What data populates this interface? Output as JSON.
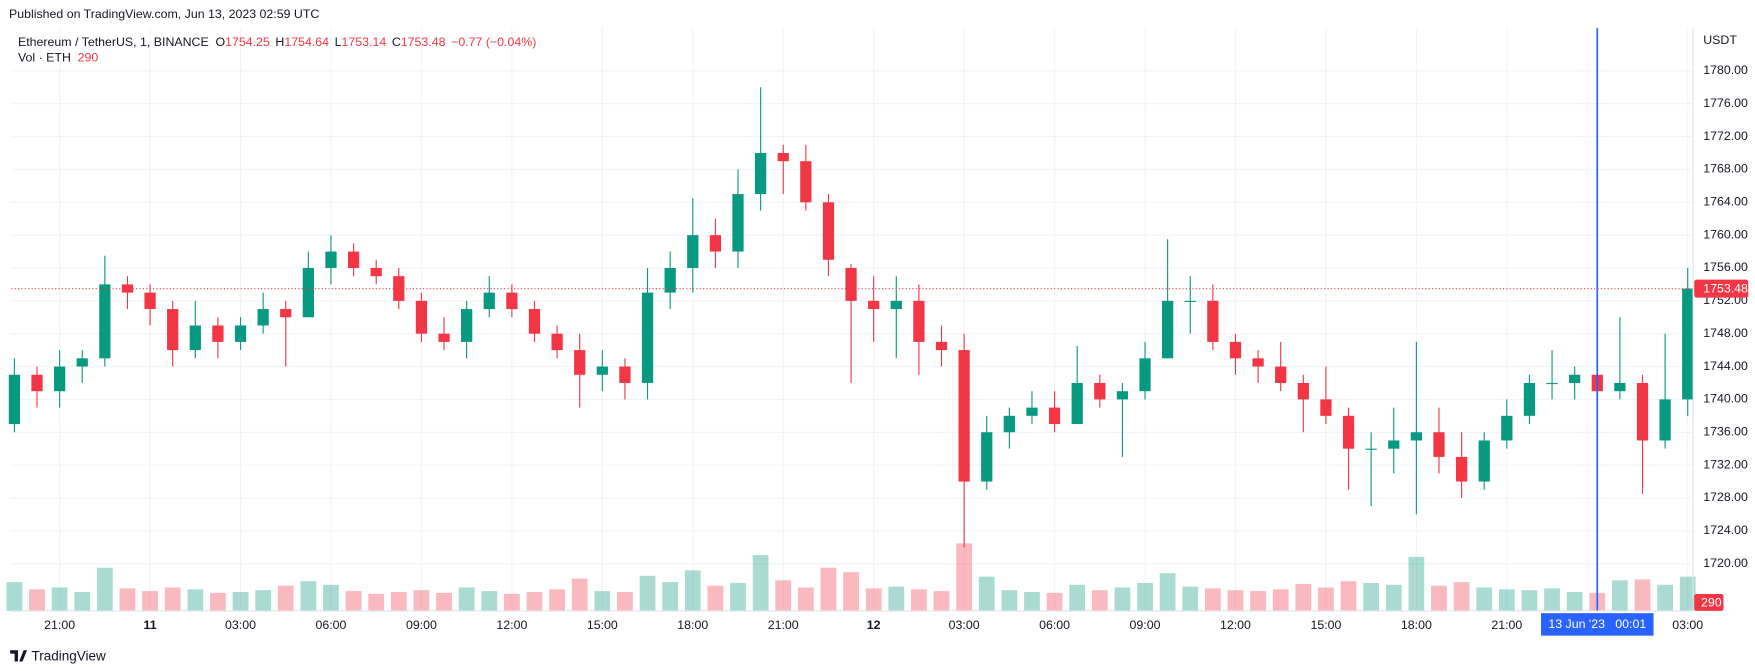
{
  "header": {
    "published": "Published on TradingView.com, Jun 13, 2023 02:59 UTC",
    "brand": "TradingView"
  },
  "chart_data": {
    "type": "candlestick",
    "symbol": "Ethereum / TetherUS, 1, BINANCE",
    "ohlc_legend": [
      {
        "key": "O",
        "value": "1754.25"
      },
      {
        "key": "H",
        "value": "1754.64"
      },
      {
        "key": "L",
        "value": "1753.14"
      },
      {
        "key": "C",
        "value": "1753.48"
      }
    ],
    "change": "−0.77 (−0.04%)",
    "volume_legend": "Vol · ETH",
    "volume_last": "290",
    "y_unit": "USDT",
    "up_color": "#089981",
    "down_color": "#f23645",
    "grid": true,
    "categories": [
      null,
      null,
      "21:00",
      null,
      null,
      null,
      "11",
      null,
      null,
      null,
      "03:00",
      null,
      null,
      null,
      "06:00",
      null,
      null,
      null,
      "09:00",
      null,
      null,
      null,
      "12:00",
      null,
      null,
      null,
      "15:00",
      null,
      null,
      null,
      "18:00",
      null,
      null,
      null,
      "21:00",
      null,
      null,
      null,
      "12",
      null,
      null,
      null,
      "03:00",
      null,
      null,
      null,
      "06:00",
      null,
      null,
      null,
      "09:00",
      null,
      null,
      null,
      "12:00",
      null,
      null,
      null,
      "15:00",
      null,
      null,
      null,
      "18:00",
      null,
      null,
      null,
      "21:00",
      null,
      null,
      null,
      {
        "label": "13 Jun '23   00:01",
        "crosshair": true
      },
      null,
      null,
      null,
      "03:00"
    ],
    "open": [
      1737,
      1743,
      1741,
      1744,
      1745,
      1754,
      1753,
      1751,
      1746,
      1749,
      1747,
      1749,
      1751,
      1750,
      1756,
      1758,
      1756,
      1755,
      1752,
      1748,
      1747,
      1751,
      1753,
      1751,
      1748,
      1746,
      1743,
      1744,
      1742,
      1753,
      1756,
      1760,
      1758,
      1765,
      1770,
      1769,
      1764,
      1756,
      1752,
      1751,
      1752,
      1747,
      1746,
      1730,
      1736,
      1738,
      1739,
      1737,
      1742,
      1740,
      1741,
      1745,
      1752,
      1752,
      1747,
      1745,
      1744,
      1742,
      1740,
      1738,
      1734,
      1734,
      1735,
      1736,
      1733,
      1730,
      1735,
      1738,
      1742,
      1742,
      1743,
      1741,
      1742,
      1735,
      1740
    ],
    "high": [
      1745,
      1744,
      1746,
      1746,
      1757.5,
      1755,
      1754,
      1752,
      1752,
      1750,
      1750,
      1753,
      1752,
      1758,
      1760,
      1759,
      1757,
      1756,
      1753,
      1750,
      1752,
      1755,
      1754,
      1752,
      1749,
      1748,
      1746,
      1745,
      1756,
      1758,
      1764.5,
      1762,
      1768,
      1778,
      1771,
      1771,
      1765,
      1756.5,
      1755,
      1755,
      1754,
      1749,
      1748,
      1738,
      1739,
      1741,
      1741,
      1746.5,
      1743,
      1742,
      1747,
      1759.5,
      1755,
      1754,
      1748,
      1746,
      1747,
      1743,
      1744,
      1739,
      1736,
      1739,
      1747,
      1739,
      1736,
      1736,
      1740,
      1743,
      1746,
      1744,
      1745,
      1750,
      1743,
      1748,
      1756
    ],
    "low": [
      1736,
      1739,
      1739,
      1742,
      1744,
      1751,
      1749,
      1744,
      1745,
      1745,
      1746,
      1748,
      1744,
      1750,
      1754,
      1755,
      1754,
      1751,
      1747,
      1746,
      1745,
      1750,
      1750,
      1747,
      1745,
      1739,
      1741,
      1740,
      1740,
      1751,
      1753,
      1756,
      1756,
      1763,
      1765,
      1763,
      1755,
      1742,
      1747,
      1745,
      1743,
      1744,
      1722,
      1729,
      1734,
      1737,
      1736,
      1737,
      1739,
      1733,
      1740,
      1745,
      1748,
      1746,
      1743,
      1742,
      1741,
      1736,
      1737,
      1729,
      1727,
      1731,
      1726,
      1731,
      1728,
      1729,
      1734,
      1737,
      1740,
      1740,
      1740,
      1740,
      1728.5,
      1734,
      1738
    ],
    "close": [
      1743,
      1741,
      1744,
      1745,
      1754,
      1753,
      1751,
      1746,
      1749,
      1747,
      1749,
      1751,
      1750,
      1756,
      1758,
      1756,
      1755,
      1752,
      1748,
      1747,
      1751,
      1753,
      1751,
      1748,
      1746,
      1743,
      1744,
      1742,
      1753,
      1756,
      1760,
      1758,
      1765,
      1770,
      1769,
      1764,
      1757,
      1752,
      1751,
      1752,
      1747,
      1746,
      1730,
      1736,
      1738,
      1739,
      1737,
      1742,
      1740,
      1741,
      1745,
      1752,
      1752,
      1747,
      1745,
      1744,
      1742,
      1740,
      1738,
      1734,
      1734,
      1735,
      1736,
      1733,
      1730,
      1735,
      1738,
      1742,
      1742,
      1743,
      1741,
      1742,
      1735,
      1740,
      1753.48
    ],
    "volume": [
      3200,
      2400,
      2600,
      2100,
      4800,
      2500,
      2200,
      2600,
      2400,
      2000,
      2100,
      2300,
      2800,
      3300,
      2900,
      2200,
      1900,
      2100,
      2300,
      2000,
      2600,
      2200,
      1900,
      2100,
      2400,
      3600,
      2200,
      2100,
      3900,
      3200,
      4500,
      2800,
      3100,
      6200,
      3400,
      2600,
      4800,
      4300,
      2500,
      2700,
      2400,
      2200,
      7500,
      3800,
      2300,
      2100,
      2000,
      2900,
      2300,
      2600,
      3100,
      4200,
      2700,
      2500,
      2300,
      2200,
      2400,
      3000,
      2600,
      3300,
      3100,
      2900,
      6000,
      2800,
      3200,
      2600,
      2400,
      2300,
      2500,
      2100,
      2000,
      3400,
      3500,
      2900,
      3800
    ],
    "last_price": {
      "value": 1753.48,
      "label": "1753.48"
    },
    "ylim": [
      1714.25,
      1785.2
    ],
    "yticks": [
      {
        "value": 1720,
        "label": "1720.00"
      },
      {
        "value": 1724,
        "label": "1724.00"
      },
      {
        "value": 1728,
        "label": "1728.00"
      },
      {
        "value": 1732,
        "label": "1732.00"
      },
      {
        "value": 1736,
        "label": "1736.00"
      },
      {
        "value": 1740,
        "label": "1740.00"
      },
      {
        "value": 1744,
        "label": "1744.00"
      },
      {
        "value": 1748,
        "label": "1748.00"
      },
      {
        "value": 1752,
        "label": "1752.00"
      },
      {
        "value": 1756,
        "label": "1756.00"
      },
      {
        "value": 1760,
        "label": "1760.00"
      },
      {
        "value": 1764,
        "label": "1764.00"
      },
      {
        "value": 1768,
        "label": "1768.00"
      },
      {
        "value": 1772,
        "label": "1772.00"
      },
      {
        "value": 1776,
        "label": "1776.00"
      },
      {
        "value": 1780,
        "label": "1780.00"
      }
    ]
  }
}
